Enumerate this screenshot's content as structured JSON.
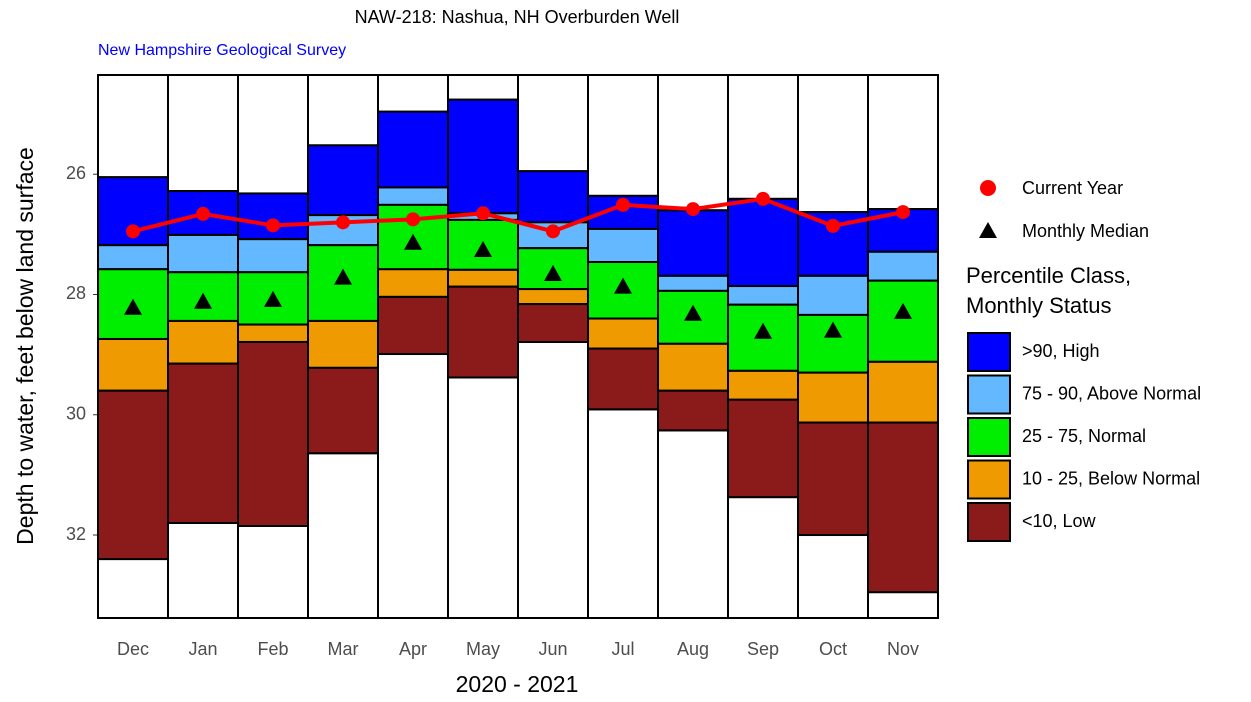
{
  "chart_data": {
    "type": "percentile_box",
    "title": "NAW-218: Nashua, NH Overburden Well",
    "subtitle": "New Hampshire Geological Survey",
    "xlabel": "2020 - 2021",
    "ylabel": "Depth to water, feet below land surface",
    "categories": [
      "Dec",
      "Jan",
      "Feb",
      "Mar",
      "Apr",
      "May",
      "Jun",
      "Jul",
      "Aug",
      "Sep",
      "Oct",
      "Nov"
    ],
    "ylim": [
      33.38,
      24.35
    ],
    "yticks": [
      26,
      28,
      30,
      32
    ],
    "legend_title": [
      "Percentile Class,",
      "Monthly Status"
    ],
    "series": [
      {
        "name": ">90, High",
        "color": "#0000ff",
        "values": [
          [
            26.05,
            27.18
          ],
          [
            26.28,
            27.01
          ],
          [
            26.32,
            27.08
          ],
          [
            25.52,
            26.68
          ],
          [
            24.96,
            26.22
          ],
          [
            24.76,
            26.65
          ],
          [
            25.95,
            26.8
          ],
          [
            26.36,
            26.91
          ],
          [
            26.6,
            27.69
          ],
          [
            26.41,
            27.86
          ],
          [
            26.63,
            27.69
          ],
          [
            26.58,
            27.29
          ]
        ]
      },
      {
        "name": "75 - 90, Above Normal",
        "color": "#63b8ff",
        "values": [
          [
            27.18,
            27.58
          ],
          [
            27.01,
            27.63
          ],
          [
            27.08,
            27.63
          ],
          [
            26.68,
            27.18
          ],
          [
            26.22,
            26.51
          ],
          [
            26.65,
            26.76
          ],
          [
            26.8,
            27.23
          ],
          [
            26.91,
            27.46
          ],
          [
            27.69,
            27.94
          ],
          [
            27.86,
            28.17
          ],
          [
            27.69,
            28.34
          ],
          [
            27.29,
            27.77
          ]
        ]
      },
      {
        "name": "25 - 75, Normal",
        "color": "#00ee00",
        "values": [
          [
            27.58,
            28.74
          ],
          [
            27.63,
            28.44
          ],
          [
            27.63,
            28.5
          ],
          [
            27.18,
            28.44
          ],
          [
            26.51,
            27.58
          ],
          [
            26.76,
            27.59
          ],
          [
            27.23,
            27.91
          ],
          [
            27.46,
            28.4
          ],
          [
            27.94,
            28.82
          ],
          [
            28.17,
            29.27
          ],
          [
            28.34,
            29.3
          ],
          [
            27.77,
            29.12
          ]
        ]
      },
      {
        "name": "10 - 25, Below Normal",
        "color": "#ee9a00",
        "values": [
          [
            28.74,
            29.6
          ],
          [
            28.44,
            29.15
          ],
          [
            28.5,
            28.79
          ],
          [
            28.44,
            29.22
          ],
          [
            27.58,
            28.04
          ],
          [
            27.59,
            27.87
          ],
          [
            27.91,
            28.16
          ],
          [
            28.4,
            28.9
          ],
          [
            28.82,
            29.6
          ],
          [
            29.27,
            29.75
          ],
          [
            29.3,
            30.13
          ],
          [
            29.12,
            30.13
          ]
        ]
      },
      {
        "name": "<10, Low",
        "color": "#8b1a1a",
        "values": [
          [
            29.6,
            32.4
          ],
          [
            29.15,
            31.8
          ],
          [
            28.79,
            31.85
          ],
          [
            29.22,
            30.64
          ],
          [
            28.04,
            28.99
          ],
          [
            27.87,
            29.38
          ],
          [
            28.16,
            28.79
          ],
          [
            28.9,
            29.91
          ],
          [
            29.6,
            30.26
          ],
          [
            29.75,
            31.37
          ],
          [
            30.13,
            32.0
          ],
          [
            30.13,
            32.95
          ]
        ]
      }
    ],
    "median": {
      "name": "Monthly Median",
      "color": "#000000",
      "values": [
        28.22,
        28.12,
        28.09,
        27.72,
        27.14,
        27.26,
        27.66,
        27.87,
        28.32,
        28.62,
        28.6,
        28.29
      ]
    },
    "current": {
      "name": "Current Year",
      "color": "#ff0000",
      "values": [
        26.95,
        26.66,
        26.85,
        26.8,
        26.75,
        26.65,
        26.95,
        26.51,
        26.58,
        26.41,
        26.86,
        26.63
      ]
    }
  }
}
